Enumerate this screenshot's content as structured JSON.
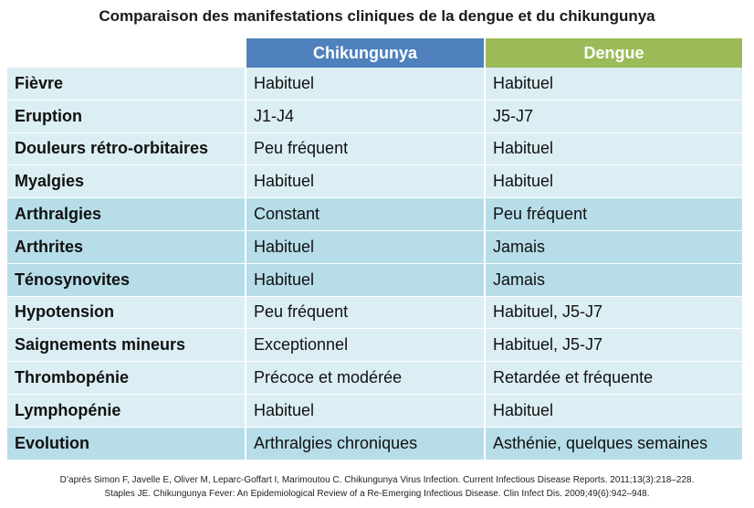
{
  "title": "Comparaison des manifestations cliniques de la dengue et du chikungunya",
  "header": {
    "col1": "",
    "col2": "Chikungunya",
    "col3": "Dengue"
  },
  "rows": [
    {
      "label": "Fièvre",
      "chik": "Habituel",
      "dengue": "Habituel"
    },
    {
      "label": "Eruption",
      "chik": "J1-J4",
      "dengue": "J5-J7"
    },
    {
      "label": "Douleurs rétro-orbitaires",
      "chik": "Peu fréquent",
      "dengue": "Habituel"
    },
    {
      "label": "Myalgies",
      "chik": "Habituel",
      "dengue": "Habituel"
    },
    {
      "label": "Arthralgies",
      "chik": "Constant",
      "dengue": "Peu fréquent"
    },
    {
      "label": "Arthrites",
      "chik": "Habituel",
      "dengue": "Jamais"
    },
    {
      "label": "Ténosynovites",
      "chik": "Habituel",
      "dengue": "Jamais"
    },
    {
      "label": "Hypotension",
      "chik": "Peu fréquent",
      "dengue": "Habituel, J5-J7"
    },
    {
      "label": "Saignements mineurs",
      "chik": "Exceptionnel",
      "dengue": "Habituel, J5-J7"
    },
    {
      "label": "Thrombopénie",
      "chik": "Précoce et modérée",
      "dengue": "Retardée et fréquente"
    },
    {
      "label": "Lymphopénie",
      "chik": "Habituel",
      "dengue": "Habituel"
    },
    {
      "label": "Evolution",
      "chik": "Arthralgies chroniques",
      "dengue": "Asthénie, quelques semaines"
    }
  ],
  "references": [
    "D’après Simon F, Javelle E, Oliver M, Leparc-Goffart I, Marimoutou C. Chikungunya Virus Infection. Current Infectious Disease Reports. 2011;13(3):218–228.",
    "Staples JE. Chikungunya Fever: An Epidemiological Review of a Re-Emerging Infectious Disease. Clin Infect Dis. 2009;49(6):942–948."
  ],
  "colors": {
    "chikungunya_header": "#4f81bd",
    "dengue_header": "#9bbb59",
    "row_light": "#dbeef4",
    "row_dark": "#b7dde8"
  }
}
